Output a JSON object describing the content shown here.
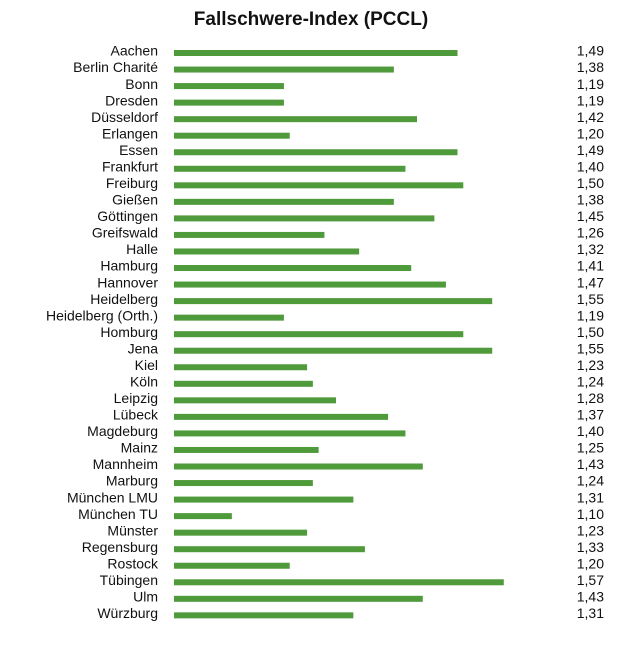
{
  "chart_data": {
    "type": "bar",
    "orientation": "horizontal",
    "title": "Fallschwere-Index (PCCL)",
    "categories": [
      "Aachen",
      "Berlin Charité",
      "Bonn",
      "Dresden",
      "Düsseldorf",
      "Erlangen",
      "Essen",
      "Frankfurt",
      "Freiburg",
      "Gießen",
      "Göttingen",
      "Greifswald",
      "Halle",
      "Hamburg",
      "Hannover",
      "Heidelberg",
      "Heidelberg (Orth.)",
      "Homburg",
      "Jena",
      "Kiel",
      "Köln",
      "Leipzig",
      "Lübeck",
      "Magdeburg",
      "Mainz",
      "Mannheim",
      "Marburg",
      "München LMU",
      "München TU",
      "Münster",
      "Regensburg",
      "Rostock",
      "Tübingen",
      "Ulm",
      "Würzburg"
    ],
    "values": [
      1.49,
      1.38,
      1.19,
      1.19,
      1.42,
      1.2,
      1.49,
      1.4,
      1.5,
      1.38,
      1.45,
      1.26,
      1.32,
      1.41,
      1.47,
      1.55,
      1.19,
      1.5,
      1.55,
      1.23,
      1.24,
      1.28,
      1.37,
      1.4,
      1.25,
      1.43,
      1.24,
      1.31,
      1.1,
      1.23,
      1.33,
      1.2,
      1.57,
      1.43,
      1.31
    ],
    "value_labels": [
      "1,49",
      "1,38",
      "1,19",
      "1,19",
      "1,42",
      "1,20",
      "1,49",
      "1,40",
      "1,50",
      "1,38",
      "1,45",
      "1,26",
      "1,32",
      "1,41",
      "1,47",
      "1,55",
      "1,19",
      "1,50",
      "1,55",
      "1,23",
      "1,24",
      "1,28",
      "1,37",
      "1,40",
      "1,25",
      "1,43",
      "1,24",
      "1,31",
      "1,10",
      "1,23",
      "1,33",
      "1,20",
      "1,57",
      "1,43",
      "1,31"
    ],
    "color": "#4f9a3a",
    "xlim": [
      1.0,
      1.7
    ]
  }
}
